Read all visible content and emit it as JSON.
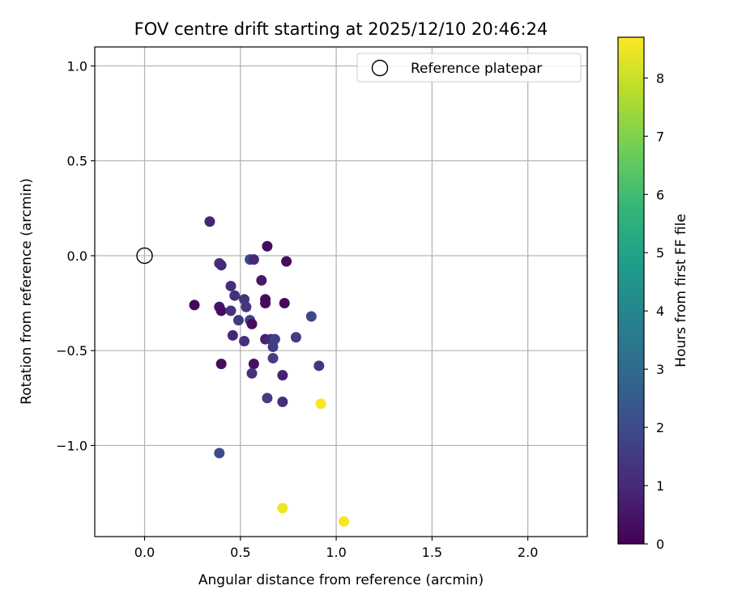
{
  "chart_data": {
    "type": "scatter",
    "title": "FOV centre drift starting at 2025/12/10 20:46:24",
    "xlabel": "Angular distance from reference (arcmin)",
    "ylabel": "Rotation from reference (arcmin)",
    "xlim": [
      -0.26,
      2.31
    ],
    "ylim": [
      -1.48,
      1.1
    ],
    "xticks": [
      "0.0",
      "0.5",
      "1.0",
      "1.5",
      "2.0"
    ],
    "xtick_values": [
      0.0,
      0.5,
      1.0,
      1.5,
      2.0
    ],
    "yticks": [
      "1.0",
      "0.5",
      "0.0",
      "−0.5",
      "−1.0"
    ],
    "ytick_values": [
      1.0,
      0.5,
      0.0,
      -0.5,
      -1.0
    ],
    "grid": true,
    "legend": {
      "position": "upper right",
      "label": "Reference platepar"
    },
    "reference_point": {
      "x": 0.0,
      "y": 0.0
    },
    "colorbar": {
      "label": "Hours from first FF file",
      "range": [
        0,
        8.7
      ],
      "ticks": [
        "0",
        "1",
        "2",
        "3",
        "4",
        "5",
        "6",
        "7",
        "8"
      ],
      "tick_values": [
        0,
        1,
        2,
        3,
        4,
        5,
        6,
        7,
        8
      ],
      "colormap": [
        "#440154",
        "#482878",
        "#3e4989",
        "#31688e",
        "#26828e",
        "#1f9e89",
        "#35b779",
        "#6ece58",
        "#b5de2b",
        "#fde725"
      ]
    },
    "points": [
      {
        "x": 0.34,
        "y": 0.18,
        "hours": 0.9
      },
      {
        "x": 0.64,
        "y": 0.05,
        "hours": 0.3
      },
      {
        "x": 0.55,
        "y": -0.02,
        "hours": 1.8
      },
      {
        "x": 0.57,
        "y": -0.02,
        "hours": 1.0
      },
      {
        "x": 0.74,
        "y": -0.03,
        "hours": 0.3
      },
      {
        "x": 0.39,
        "y": -0.04,
        "hours": 1.2
      },
      {
        "x": 0.4,
        "y": -0.05,
        "hours": 1.0
      },
      {
        "x": 0.61,
        "y": -0.13,
        "hours": 0.6
      },
      {
        "x": 0.45,
        "y": -0.16,
        "hours": 1.1
      },
      {
        "x": 0.47,
        "y": -0.21,
        "hours": 1.2
      },
      {
        "x": 0.52,
        "y": -0.23,
        "hours": 1.3
      },
      {
        "x": 0.63,
        "y": -0.23,
        "hours": 0.3
      },
      {
        "x": 0.63,
        "y": -0.25,
        "hours": 0.2
      },
      {
        "x": 0.26,
        "y": -0.26,
        "hours": 0.2
      },
      {
        "x": 0.73,
        "y": -0.25,
        "hours": 0.2
      },
      {
        "x": 0.53,
        "y": -0.27,
        "hours": 1.4
      },
      {
        "x": 0.39,
        "y": -0.27,
        "hours": 0.5
      },
      {
        "x": 0.4,
        "y": -0.29,
        "hours": 0.3
      },
      {
        "x": 0.45,
        "y": -0.29,
        "hours": 1.3
      },
      {
        "x": 0.87,
        "y": -0.32,
        "hours": 1.9
      },
      {
        "x": 0.49,
        "y": -0.34,
        "hours": 1.5
      },
      {
        "x": 0.55,
        "y": -0.34,
        "hours": 1.7
      },
      {
        "x": 0.56,
        "y": -0.36,
        "hours": 0.3
      },
      {
        "x": 0.46,
        "y": -0.42,
        "hours": 0.9
      },
      {
        "x": 0.79,
        "y": -0.43,
        "hours": 1.6
      },
      {
        "x": 0.63,
        "y": -0.44,
        "hours": 0.8
      },
      {
        "x": 0.66,
        "y": -0.44,
        "hours": 1.0
      },
      {
        "x": 0.68,
        "y": -0.44,
        "hours": 1.7
      },
      {
        "x": 0.52,
        "y": -0.45,
        "hours": 1.2
      },
      {
        "x": 0.67,
        "y": -0.48,
        "hours": 1.6
      },
      {
        "x": 0.67,
        "y": -0.54,
        "hours": 1.6
      },
      {
        "x": 0.4,
        "y": -0.57,
        "hours": 0.3
      },
      {
        "x": 0.57,
        "y": -0.57,
        "hours": 0.4
      },
      {
        "x": 0.91,
        "y": -0.58,
        "hours": 1.4
      },
      {
        "x": 0.56,
        "y": -0.62,
        "hours": 1.3
      },
      {
        "x": 0.72,
        "y": -0.63,
        "hours": 0.8
      },
      {
        "x": 0.64,
        "y": -0.75,
        "hours": 1.6
      },
      {
        "x": 0.72,
        "y": -0.77,
        "hours": 1.2
      },
      {
        "x": 0.92,
        "y": -0.78,
        "hours": 8.6
      },
      {
        "x": 0.39,
        "y": -1.04,
        "hours": 2.0
      },
      {
        "x": 0.72,
        "y": -1.33,
        "hours": 8.5
      },
      {
        "x": 1.04,
        "y": -1.4,
        "hours": 8.6
      }
    ]
  }
}
